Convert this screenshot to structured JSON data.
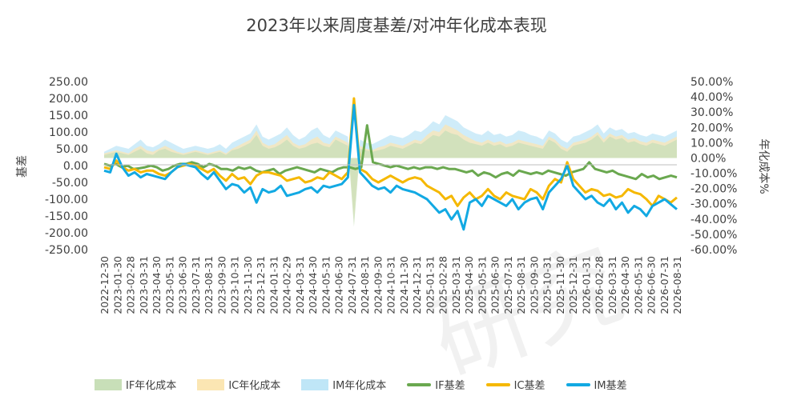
{
  "chart_data": {
    "type": "line",
    "title": "2023年以来周度基差/对冲年化成本表现",
    "ylabel": "基差",
    "y2label": "年化成本%",
    "ylim": [
      -250,
      250
    ],
    "y2lim": [
      -0.6,
      0.5
    ],
    "y_ticks": [
      "250.00",
      "200.00",
      "150.00",
      "100.00",
      "50.00",
      "0.00",
      "-50.00",
      "-100.00",
      "-150.00",
      "-200.00",
      "-250.00"
    ],
    "y2_ticks": [
      "50.00%",
      "40.00%",
      "30.00%",
      "20.00%",
      "10.00%",
      "0.00%",
      "-10.00%",
      "-20.00%",
      "-30.00%",
      "-40.00%",
      "-50.00%",
      "-60.00%"
    ],
    "x_ticks": [
      "2022-12-30",
      "2023-01-30",
      "2023-02-28",
      "2023-03-31",
      "2023-04-30",
      "2023-05-31",
      "2023-06-30",
      "2023-07-31",
      "2023-08-31",
      "2023-09-30",
      "2023-10-31",
      "2023-11-30",
      "2023-12-31",
      "2024-01-31",
      "2024-02-29",
      "2024-03-31",
      "2024-04-30",
      "2024-05-31",
      "2024-06-30",
      "2024-07-31",
      "2024-08-31",
      "2024-09-30",
      "2024-10-31",
      "2024-11-30",
      "2024-12-31",
      "2025-01-31",
      "2025-02-28",
      "2025-03-31",
      "2025-04-30",
      "2025-05-31",
      "2025-06-30",
      "2025-07-31",
      "2025-08-31",
      "2025-09-30",
      "2025-10-31",
      "2025-11-30",
      "2025-12-31",
      "2026-01-31",
      "2026-02-28",
      "2026-03-31",
      "2026-04-30",
      "2026-05-31",
      "2026-06-30",
      "2026-07-31",
      "2026-08-31"
    ],
    "legend": [
      "IF年化成本",
      "IC年化成本",
      "IM年化成本",
      "IF基差",
      "IC基差",
      "IM基差"
    ],
    "legend_position": "bottom",
    "grid": false,
    "colors": {
      "IF_cost": "#c8dfb8",
      "IC_cost": "#fbe6b3",
      "IM_cost": "#bfe6f7",
      "IF_basis": "#6aa84f",
      "IC_basis": "#f5b800",
      "IM_basis": "#12a9e3"
    },
    "series_note": "weekly values in data units (basis in index points, cost in %)",
    "series": [
      {
        "name": "IF基差",
        "axis": "left",
        "type": "line",
        "key": "IF_basis",
        "values": [
          5,
          0,
          5,
          -5,
          0,
          -10,
          -8,
          -5,
          0,
          -5,
          -15,
          -10,
          0,
          5,
          5,
          10,
          5,
          -5,
          5,
          0,
          -10,
          -10,
          -15,
          -5,
          -10,
          -5,
          -15,
          -20,
          -15,
          -10,
          -25,
          -15,
          -10,
          -5,
          -10,
          -15,
          -20,
          -10,
          -15,
          -20,
          -10,
          -5,
          -5,
          -10,
          -5,
          120,
          10,
          5,
          0,
          -5,
          0,
          -5,
          -10,
          -5,
          -10,
          -5,
          -5,
          -10,
          -5,
          -10,
          -10,
          -15,
          -20,
          -15,
          -30,
          -20,
          -25,
          -35,
          -25,
          -20,
          -30,
          -15,
          -20,
          -25,
          -20,
          -25,
          -15,
          -20,
          -25,
          -30,
          -20,
          -15,
          -10,
          10,
          -10,
          -15,
          -20,
          -15,
          -25,
          -30,
          -35,
          -40,
          -25,
          -35,
          -30,
          -40,
          -35,
          -30,
          -35
        ]
      },
      {
        "name": "IC基差",
        "axis": "left",
        "type": "line",
        "key": "IC_basis",
        "values": [
          -5,
          -10,
          15,
          -5,
          -15,
          -10,
          -20,
          -15,
          -15,
          -25,
          -30,
          -20,
          -5,
          0,
          5,
          0,
          -10,
          -20,
          -10,
          -30,
          -45,
          -25,
          -40,
          -35,
          -55,
          -30,
          -20,
          -20,
          -25,
          -30,
          -45,
          -40,
          -35,
          -50,
          -45,
          -35,
          -40,
          -20,
          -30,
          -40,
          -20,
          200,
          -10,
          -20,
          -40,
          -50,
          -40,
          -30,
          -40,
          -50,
          -40,
          -35,
          -40,
          -60,
          -70,
          -80,
          -100,
          -90,
          -120,
          -95,
          -80,
          -100,
          -90,
          -70,
          -90,
          -100,
          -80,
          -90,
          -95,
          -100,
          -70,
          -80,
          -100,
          -60,
          -40,
          -50,
          10,
          -40,
          -60,
          -80,
          -70,
          -75,
          -90,
          -85,
          -95,
          -90,
          -70,
          -80,
          -85,
          -100,
          -120,
          -90,
          -100,
          -110,
          -95
        ]
      },
      {
        "name": "IM基差",
        "axis": "left",
        "type": "line",
        "key": "IM_basis",
        "values": [
          -15,
          -20,
          35,
          -5,
          -30,
          -20,
          -35,
          -25,
          -30,
          -35,
          -40,
          -20,
          -5,
          5,
          0,
          -5,
          -25,
          -40,
          -20,
          -45,
          -70,
          -55,
          -60,
          -80,
          -65,
          -110,
          -70,
          -80,
          -75,
          -60,
          -90,
          -85,
          -80,
          -70,
          -65,
          -80,
          -60,
          -65,
          -60,
          -55,
          -35,
          180,
          -20,
          -40,
          -60,
          -70,
          -65,
          -80,
          -60,
          -70,
          -75,
          -80,
          -90,
          -100,
          -120,
          -140,
          -130,
          -160,
          -135,
          -190,
          -110,
          -100,
          -120,
          -90,
          -100,
          -110,
          -120,
          -100,
          -130,
          -110,
          -100,
          -95,
          -130,
          -80,
          -60,
          -40,
          0,
          -60,
          -80,
          -100,
          -90,
          -110,
          -120,
          -100,
          -130,
          -110,
          -140,
          -120,
          -130,
          -150,
          -120,
          -110,
          -100,
          -115,
          -130
        ]
      },
      {
        "name": "IF年化成本",
        "axis": "right",
        "type": "area",
        "key": "IF_cost",
        "values": [
          2,
          3,
          4,
          3,
          2,
          4,
          6,
          3,
          2,
          5,
          6,
          4,
          3,
          2,
          3,
          4,
          3,
          2,
          3,
          4,
          2,
          5,
          6,
          8,
          10,
          15,
          8,
          6,
          7,
          9,
          12,
          8,
          6,
          7,
          9,
          10,
          8,
          7,
          12,
          10,
          8,
          -45,
          6,
          5,
          4,
          5,
          6,
          8,
          7,
          6,
          8,
          10,
          9,
          12,
          15,
          14,
          18,
          16,
          15,
          12,
          10,
          9,
          8,
          10,
          8,
          9,
          7,
          8,
          10,
          9,
          8,
          7,
          6,
          12,
          10,
          6,
          4,
          8,
          9,
          10,
          12,
          15,
          10,
          14,
          12,
          13,
          10,
          11,
          9,
          8,
          10,
          9,
          8,
          10,
          12
        ]
      },
      {
        "name": "IC年化成本",
        "axis": "right",
        "type": "area",
        "key": "IC_cost",
        "values": [
          3,
          4,
          5,
          4,
          3,
          6,
          8,
          5,
          4,
          6,
          8,
          6,
          4,
          3,
          4,
          5,
          4,
          3,
          4,
          5,
          3,
          6,
          8,
          10,
          12,
          18,
          10,
          8,
          9,
          12,
          15,
          10,
          8,
          9,
          12,
          14,
          10,
          9,
          14,
          12,
          10,
          -40,
          8,
          6,
          5,
          7,
          8,
          10,
          9,
          8,
          10,
          12,
          11,
          15,
          18,
          17,
          22,
          20,
          18,
          15,
          13,
          11,
          10,
          12,
          10,
          11,
          9,
          10,
          12,
          11,
          10,
          9,
          8,
          14,
          12,
          8,
          6,
          10,
          11,
          12,
          14,
          17,
          12,
          16,
          14,
          15,
          12,
          13,
          11,
          10,
          12,
          11,
          10,
          12,
          14
        ]
      },
      {
        "name": "IM年化成本",
        "axis": "right",
        "type": "area",
        "key": "IM_cost",
        "values": [
          4,
          6,
          8,
          7,
          6,
          9,
          12,
          8,
          7,
          9,
          12,
          10,
          8,
          6,
          7,
          8,
          7,
          6,
          7,
          9,
          6,
          10,
          12,
          14,
          16,
          22,
          14,
          12,
          14,
          16,
          20,
          15,
          12,
          14,
          18,
          20,
          15,
          13,
          18,
          16,
          14,
          -35,
          12,
          10,
          9,
          11,
          13,
          15,
          14,
          13,
          15,
          18,
          17,
          20,
          24,
          22,
          28,
          26,
          24,
          20,
          18,
          16,
          15,
          18,
          15,
          16,
          14,
          15,
          18,
          17,
          15,
          14,
          12,
          18,
          16,
          12,
          10,
          14,
          15,
          17,
          19,
          22,
          16,
          20,
          18,
          19,
          16,
          17,
          15,
          14,
          16,
          15,
          14,
          16,
          18
        ]
      }
    ]
  }
}
